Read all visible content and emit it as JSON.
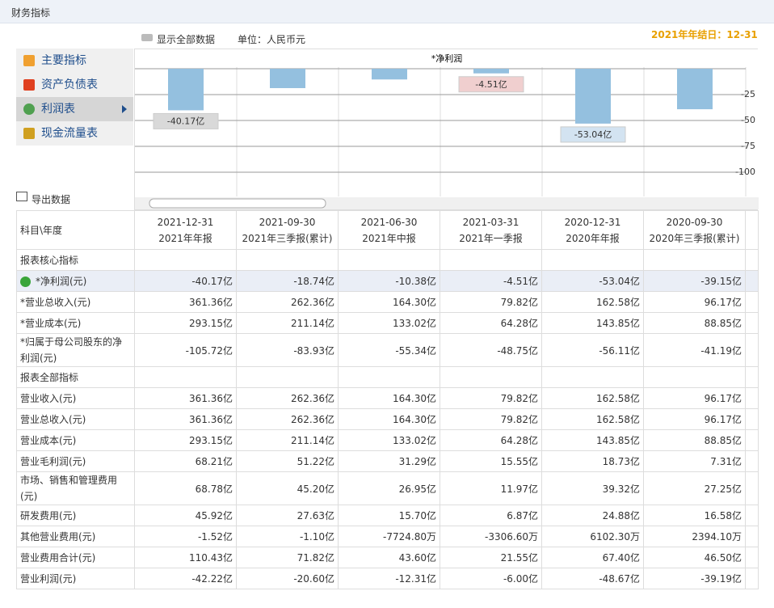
{
  "header": {
    "title": "财务指标",
    "show_all": "显示全部数据",
    "unit": "单位：人民币元",
    "year_end": "2021年年结日：12-31"
  },
  "menu": {
    "items": [
      "主要指标",
      "资产负债表",
      "利润表",
      "现金流量表"
    ],
    "active": 2
  },
  "export": "导出数据",
  "chart_data": {
    "type": "bar",
    "title": "*净利润",
    "color": "#94c0df",
    "values": [
      -40.17,
      -18.74,
      -10.38,
      -4.51,
      -53.04,
      -39.15
    ],
    "value_labels": [
      "-40.17亿",
      null,
      null,
      "-4.51亿",
      "-53.04亿",
      null
    ],
    "ylim": [
      0,
      -100
    ],
    "yticks": [
      -25,
      -50,
      -75,
      -100
    ],
    "grid": true
  },
  "table": {
    "corner": "科目\\年度",
    "columns": [
      {
        "date": "2021-12-31",
        "period": "2021年年报"
      },
      {
        "date": "2021-09-30",
        "period": "2021年三季报(累计)"
      },
      {
        "date": "2021-06-30",
        "period": "2021年中报"
      },
      {
        "date": "2021-03-31",
        "period": "2021年一季报"
      },
      {
        "date": "2020-12-31",
        "period": "2020年年报"
      },
      {
        "date": "2020-09-30",
        "period": "2020年三季报(累计)"
      }
    ],
    "rows": [
      {
        "section": "报表核心指标"
      },
      {
        "label": "*净利润(元)",
        "values": [
          "-40.17亿",
          "-18.74亿",
          "-10.38亿",
          "-4.51亿",
          "-53.04亿",
          "-39.15亿"
        ]
      },
      {
        "label": "*营业总收入(元)",
        "values": [
          "361.36亿",
          "262.36亿",
          "164.30亿",
          "79.82亿",
          "162.58亿",
          "96.17亿"
        ]
      },
      {
        "label": "*营业成本(元)",
        "values": [
          "293.15亿",
          "211.14亿",
          "133.02亿",
          "64.28亿",
          "143.85亿",
          "88.85亿"
        ]
      },
      {
        "label": "*归属于母公司股东的净利润(元)",
        "values": [
          "-105.72亿",
          "-83.93亿",
          "-55.34亿",
          "-48.75亿",
          "-56.11亿",
          "-41.19亿"
        ]
      },
      {
        "section": "报表全部指标"
      },
      {
        "label": "营业收入(元)",
        "values": [
          "361.36亿",
          "262.36亿",
          "164.30亿",
          "79.82亿",
          "162.58亿",
          "96.17亿"
        ]
      },
      {
        "label": "营业总收入(元)",
        "values": [
          "361.36亿",
          "262.36亿",
          "164.30亿",
          "79.82亿",
          "162.58亿",
          "96.17亿"
        ]
      },
      {
        "label": "营业成本(元)",
        "values": [
          "293.15亿",
          "211.14亿",
          "133.02亿",
          "64.28亿",
          "143.85亿",
          "88.85亿"
        ]
      },
      {
        "label": "营业毛利润(元)",
        "values": [
          "68.21亿",
          "51.22亿",
          "31.29亿",
          "15.55亿",
          "18.73亿",
          "7.31亿"
        ]
      },
      {
        "label": "市场、销售和管理费用(元)",
        "values": [
          "68.78亿",
          "45.20亿",
          "26.95亿",
          "11.97亿",
          "39.32亿",
          "27.25亿"
        ]
      },
      {
        "label": "研发费用(元)",
        "values": [
          "45.92亿",
          "27.63亿",
          "15.70亿",
          "6.87亿",
          "24.88亿",
          "16.58亿"
        ]
      },
      {
        "label": "其他营业费用(元)",
        "values": [
          "-1.52亿",
          "-1.10亿",
          "-7724.80万",
          "-3306.60万",
          "6102.30万",
          "2394.10万"
        ]
      },
      {
        "label": "营业费用合计(元)",
        "values": [
          "110.43亿",
          "71.82亿",
          "43.60亿",
          "21.55亿",
          "67.40亿",
          "46.50亿"
        ]
      },
      {
        "label": "营业利润(元)",
        "values": [
          "-42.22亿",
          "-20.60亿",
          "-12.31亿",
          "-6.00亿",
          "-48.67亿",
          "-39.19亿"
        ]
      }
    ]
  }
}
